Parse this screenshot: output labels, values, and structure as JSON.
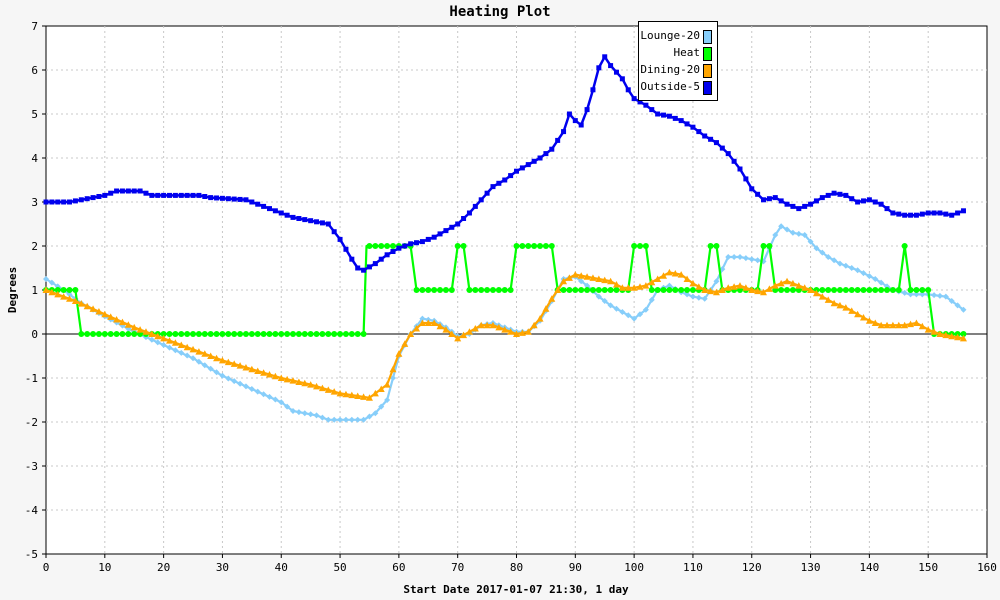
{
  "chart_data": {
    "type": "line",
    "title": "Heating Plot",
    "xlabel": "Start Date 2017-01-07 21:30, 1 day",
    "ylabel": "Degrees",
    "xlim": [
      0,
      160
    ],
    "ylim": [
      -5,
      7
    ],
    "xticks": [
      0,
      10,
      20,
      30,
      40,
      50,
      60,
      70,
      80,
      90,
      100,
      110,
      120,
      130,
      140,
      150,
      160
    ],
    "yticks": [
      -5,
      -4,
      -3,
      -2,
      -1,
      0,
      1,
      2,
      3,
      4,
      5,
      6,
      7
    ],
    "grid": true,
    "legend_position": "top-right",
    "series": [
      {
        "name": "Lounge-20",
        "color": "#87cefa",
        "marker": "diamond",
        "points": [
          [
            0,
            1.25
          ],
          [
            3,
            1.0
          ],
          [
            6,
            0.7
          ],
          [
            10,
            0.4
          ],
          [
            15,
            0.05
          ],
          [
            20,
            -0.25
          ],
          [
            25,
            -0.55
          ],
          [
            30,
            -0.95
          ],
          [
            35,
            -1.25
          ],
          [
            40,
            -1.55
          ],
          [
            42,
            -1.75
          ],
          [
            46,
            -1.85
          ],
          [
            48,
            -1.95
          ],
          [
            54,
            -1.95
          ],
          [
            56,
            -1.8
          ],
          [
            58,
            -1.5
          ],
          [
            60,
            -0.5
          ],
          [
            62,
            0.0
          ],
          [
            64,
            0.35
          ],
          [
            66,
            0.3
          ],
          [
            68,
            0.15
          ],
          [
            70,
            -0.05
          ],
          [
            72,
            0.0
          ],
          [
            74,
            0.2
          ],
          [
            76,
            0.25
          ],
          [
            78,
            0.15
          ],
          [
            80,
            0.05
          ],
          [
            82,
            0.05
          ],
          [
            84,
            0.3
          ],
          [
            86,
            0.75
          ],
          [
            88,
            1.25
          ],
          [
            90,
            1.3
          ],
          [
            92,
            1.1
          ],
          [
            94,
            0.85
          ],
          [
            96,
            0.65
          ],
          [
            98,
            0.5
          ],
          [
            100,
            0.35
          ],
          [
            102,
            0.55
          ],
          [
            104,
            1.0
          ],
          [
            106,
            1.1
          ],
          [
            108,
            0.95
          ],
          [
            110,
            0.85
          ],
          [
            112,
            0.8
          ],
          [
            114,
            1.2
          ],
          [
            116,
            1.75
          ],
          [
            118,
            1.75
          ],
          [
            120,
            1.7
          ],
          [
            122,
            1.65
          ],
          [
            124,
            2.25
          ],
          [
            125,
            2.45
          ],
          [
            127,
            2.3
          ],
          [
            129,
            2.25
          ],
          [
            131,
            1.95
          ],
          [
            133,
            1.75
          ],
          [
            135,
            1.6
          ],
          [
            138,
            1.45
          ],
          [
            141,
            1.25
          ],
          [
            144,
            1.0
          ],
          [
            147,
            0.9
          ],
          [
            150,
            0.9
          ],
          [
            153,
            0.85
          ],
          [
            156,
            0.55
          ]
        ]
      },
      {
        "name": "Heat",
        "color": "#00ff00",
        "marker": "circle",
        "points": [
          [
            0,
            1
          ],
          [
            5,
            1
          ],
          [
            6,
            0
          ],
          [
            54,
            0
          ],
          [
            54.5,
            2
          ],
          [
            62,
            2
          ],
          [
            63,
            1
          ],
          [
            69,
            1
          ],
          [
            70,
            2
          ],
          [
            71,
            2
          ],
          [
            72,
            1
          ],
          [
            79,
            1
          ],
          [
            80,
            2
          ],
          [
            86,
            2
          ],
          [
            87,
            1
          ],
          [
            99,
            1
          ],
          [
            100,
            2
          ],
          [
            102,
            2
          ],
          [
            103,
            1
          ],
          [
            112,
            1
          ],
          [
            113,
            2
          ],
          [
            114,
            2
          ],
          [
            115,
            1
          ],
          [
            121,
            1
          ],
          [
            122,
            2
          ],
          [
            123,
            2
          ],
          [
            124,
            1
          ],
          [
            145,
            1
          ],
          [
            146,
            2
          ],
          [
            147,
            1
          ],
          [
            150,
            1
          ],
          [
            151,
            0
          ],
          [
            156,
            0
          ]
        ]
      },
      {
        "name": "Dining-20",
        "color": "#ffa500",
        "marker": "triangle",
        "points": [
          [
            0,
            1.0
          ],
          [
            5,
            0.75
          ],
          [
            10,
            0.45
          ],
          [
            15,
            0.15
          ],
          [
            20,
            -0.1
          ],
          [
            25,
            -0.35
          ],
          [
            30,
            -0.6
          ],
          [
            35,
            -0.8
          ],
          [
            40,
            -1.0
          ],
          [
            45,
            -1.15
          ],
          [
            50,
            -1.35
          ],
          [
            55,
            -1.45
          ],
          [
            58,
            -1.15
          ],
          [
            60,
            -0.45
          ],
          [
            62,
            0.0
          ],
          [
            64,
            0.25
          ],
          [
            66,
            0.25
          ],
          [
            68,
            0.1
          ],
          [
            70,
            -0.1
          ],
          [
            72,
            0.05
          ],
          [
            74,
            0.2
          ],
          [
            76,
            0.2
          ],
          [
            78,
            0.1
          ],
          [
            80,
            0.0
          ],
          [
            82,
            0.05
          ],
          [
            84,
            0.35
          ],
          [
            86,
            0.8
          ],
          [
            88,
            1.2
          ],
          [
            90,
            1.35
          ],
          [
            94,
            1.25
          ],
          [
            96,
            1.2
          ],
          [
            98,
            1.05
          ],
          [
            100,
            1.05
          ],
          [
            102,
            1.1
          ],
          [
            104,
            1.25
          ],
          [
            106,
            1.4
          ],
          [
            108,
            1.35
          ],
          [
            110,
            1.15
          ],
          [
            112,
            1.0
          ],
          [
            114,
            0.95
          ],
          [
            116,
            1.05
          ],
          [
            118,
            1.1
          ],
          [
            120,
            1.0
          ],
          [
            122,
            0.95
          ],
          [
            124,
            1.1
          ],
          [
            126,
            1.2
          ],
          [
            128,
            1.1
          ],
          [
            130,
            1.0
          ],
          [
            132,
            0.85
          ],
          [
            134,
            0.7
          ],
          [
            136,
            0.6
          ],
          [
            138,
            0.45
          ],
          [
            140,
            0.3
          ],
          [
            142,
            0.2
          ],
          [
            144,
            0.2
          ],
          [
            146,
            0.2
          ],
          [
            148,
            0.25
          ],
          [
            150,
            0.1
          ],
          [
            152,
            0.0
          ],
          [
            156,
            -0.1
          ]
        ]
      },
      {
        "name": "Outside-5",
        "color": "#0000ee",
        "marker": "square",
        "points": [
          [
            0,
            3.0
          ],
          [
            4,
            3.0
          ],
          [
            6,
            3.05
          ],
          [
            10,
            3.15
          ],
          [
            12,
            3.25
          ],
          [
            16,
            3.25
          ],
          [
            18,
            3.15
          ],
          [
            26,
            3.15
          ],
          [
            28,
            3.1
          ],
          [
            34,
            3.05
          ],
          [
            38,
            2.85
          ],
          [
            42,
            2.65
          ],
          [
            46,
            2.55
          ],
          [
            48,
            2.5
          ],
          [
            50,
            2.15
          ],
          [
            52,
            1.7
          ],
          [
            53,
            1.5
          ],
          [
            54,
            1.45
          ],
          [
            56,
            1.6
          ],
          [
            58,
            1.8
          ],
          [
            60,
            1.95
          ],
          [
            62,
            2.05
          ],
          [
            64,
            2.1
          ],
          [
            66,
            2.2
          ],
          [
            68,
            2.35
          ],
          [
            70,
            2.5
          ],
          [
            72,
            2.75
          ],
          [
            74,
            3.05
          ],
          [
            76,
            3.35
          ],
          [
            78,
            3.5
          ],
          [
            80,
            3.7
          ],
          [
            82,
            3.85
          ],
          [
            84,
            4.0
          ],
          [
            86,
            4.2
          ],
          [
            88,
            4.6
          ],
          [
            89,
            5.0
          ],
          [
            90,
            4.85
          ],
          [
            91,
            4.75
          ],
          [
            92,
            5.1
          ],
          [
            93,
            5.55
          ],
          [
            94,
            6.05
          ],
          [
            95,
            6.3
          ],
          [
            96,
            6.1
          ],
          [
            97,
            5.95
          ],
          [
            98,
            5.8
          ],
          [
            99,
            5.55
          ],
          [
            100,
            5.35
          ],
          [
            102,
            5.2
          ],
          [
            104,
            5.0
          ],
          [
            106,
            4.95
          ],
          [
            108,
            4.85
          ],
          [
            110,
            4.7
          ],
          [
            112,
            4.5
          ],
          [
            114,
            4.35
          ],
          [
            116,
            4.1
          ],
          [
            118,
            3.75
          ],
          [
            120,
            3.3
          ],
          [
            122,
            3.05
          ],
          [
            124,
            3.1
          ],
          [
            126,
            2.95
          ],
          [
            128,
            2.85
          ],
          [
            130,
            2.95
          ],
          [
            132,
            3.1
          ],
          [
            134,
            3.2
          ],
          [
            136,
            3.15
          ],
          [
            138,
            3.0
          ],
          [
            140,
            3.05
          ],
          [
            142,
            2.95
          ],
          [
            144,
            2.75
          ],
          [
            146,
            2.7
          ],
          [
            148,
            2.7
          ],
          [
            150,
            2.75
          ],
          [
            152,
            2.75
          ],
          [
            154,
            2.7
          ],
          [
            156,
            2.8
          ]
        ]
      }
    ]
  }
}
